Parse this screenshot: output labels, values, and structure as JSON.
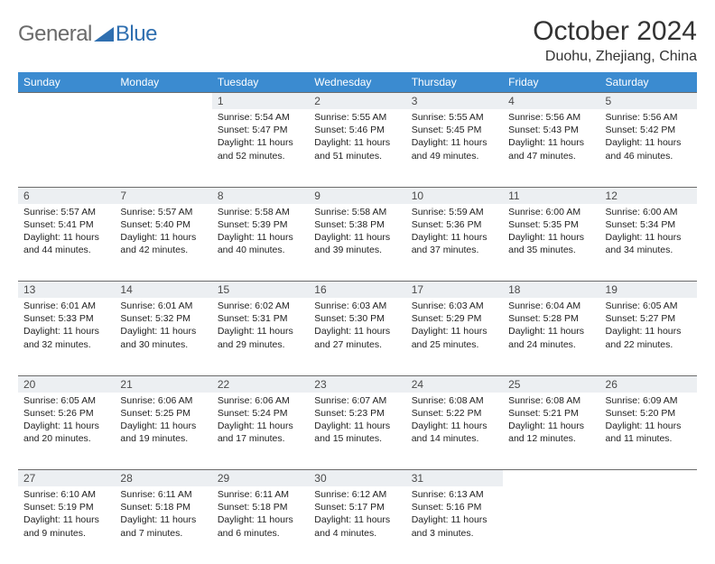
{
  "brand": {
    "text1": "General",
    "text2": "Blue"
  },
  "title": "October 2024",
  "location": "Duohu, Zhejiang, China",
  "colors": {
    "header_bg": "#3b8bd0",
    "header_text": "#ffffff",
    "daynum_bg": "#eceff2",
    "row_border": "#6b6b6b",
    "logo_gray": "#6a6a6a",
    "logo_blue": "#2f6fb0"
  },
  "dayHeaders": [
    "Sunday",
    "Monday",
    "Tuesday",
    "Wednesday",
    "Thursday",
    "Friday",
    "Saturday"
  ],
  "weeks": [
    [
      null,
      null,
      {
        "n": "1",
        "sunrise": "Sunrise: 5:54 AM",
        "sunset": "Sunset: 5:47 PM",
        "daylight": "Daylight: 11 hours and 52 minutes."
      },
      {
        "n": "2",
        "sunrise": "Sunrise: 5:55 AM",
        "sunset": "Sunset: 5:46 PM",
        "daylight": "Daylight: 11 hours and 51 minutes."
      },
      {
        "n": "3",
        "sunrise": "Sunrise: 5:55 AM",
        "sunset": "Sunset: 5:45 PM",
        "daylight": "Daylight: 11 hours and 49 minutes."
      },
      {
        "n": "4",
        "sunrise": "Sunrise: 5:56 AM",
        "sunset": "Sunset: 5:43 PM",
        "daylight": "Daylight: 11 hours and 47 minutes."
      },
      {
        "n": "5",
        "sunrise": "Sunrise: 5:56 AM",
        "sunset": "Sunset: 5:42 PM",
        "daylight": "Daylight: 11 hours and 46 minutes."
      }
    ],
    [
      {
        "n": "6",
        "sunrise": "Sunrise: 5:57 AM",
        "sunset": "Sunset: 5:41 PM",
        "daylight": "Daylight: 11 hours and 44 minutes."
      },
      {
        "n": "7",
        "sunrise": "Sunrise: 5:57 AM",
        "sunset": "Sunset: 5:40 PM",
        "daylight": "Daylight: 11 hours and 42 minutes."
      },
      {
        "n": "8",
        "sunrise": "Sunrise: 5:58 AM",
        "sunset": "Sunset: 5:39 PM",
        "daylight": "Daylight: 11 hours and 40 minutes."
      },
      {
        "n": "9",
        "sunrise": "Sunrise: 5:58 AM",
        "sunset": "Sunset: 5:38 PM",
        "daylight": "Daylight: 11 hours and 39 minutes."
      },
      {
        "n": "10",
        "sunrise": "Sunrise: 5:59 AM",
        "sunset": "Sunset: 5:36 PM",
        "daylight": "Daylight: 11 hours and 37 minutes."
      },
      {
        "n": "11",
        "sunrise": "Sunrise: 6:00 AM",
        "sunset": "Sunset: 5:35 PM",
        "daylight": "Daylight: 11 hours and 35 minutes."
      },
      {
        "n": "12",
        "sunrise": "Sunrise: 6:00 AM",
        "sunset": "Sunset: 5:34 PM",
        "daylight": "Daylight: 11 hours and 34 minutes."
      }
    ],
    [
      {
        "n": "13",
        "sunrise": "Sunrise: 6:01 AM",
        "sunset": "Sunset: 5:33 PM",
        "daylight": "Daylight: 11 hours and 32 minutes."
      },
      {
        "n": "14",
        "sunrise": "Sunrise: 6:01 AM",
        "sunset": "Sunset: 5:32 PM",
        "daylight": "Daylight: 11 hours and 30 minutes."
      },
      {
        "n": "15",
        "sunrise": "Sunrise: 6:02 AM",
        "sunset": "Sunset: 5:31 PM",
        "daylight": "Daylight: 11 hours and 29 minutes."
      },
      {
        "n": "16",
        "sunrise": "Sunrise: 6:03 AM",
        "sunset": "Sunset: 5:30 PM",
        "daylight": "Daylight: 11 hours and 27 minutes."
      },
      {
        "n": "17",
        "sunrise": "Sunrise: 6:03 AM",
        "sunset": "Sunset: 5:29 PM",
        "daylight": "Daylight: 11 hours and 25 minutes."
      },
      {
        "n": "18",
        "sunrise": "Sunrise: 6:04 AM",
        "sunset": "Sunset: 5:28 PM",
        "daylight": "Daylight: 11 hours and 24 minutes."
      },
      {
        "n": "19",
        "sunrise": "Sunrise: 6:05 AM",
        "sunset": "Sunset: 5:27 PM",
        "daylight": "Daylight: 11 hours and 22 minutes."
      }
    ],
    [
      {
        "n": "20",
        "sunrise": "Sunrise: 6:05 AM",
        "sunset": "Sunset: 5:26 PM",
        "daylight": "Daylight: 11 hours and 20 minutes."
      },
      {
        "n": "21",
        "sunrise": "Sunrise: 6:06 AM",
        "sunset": "Sunset: 5:25 PM",
        "daylight": "Daylight: 11 hours and 19 minutes."
      },
      {
        "n": "22",
        "sunrise": "Sunrise: 6:06 AM",
        "sunset": "Sunset: 5:24 PM",
        "daylight": "Daylight: 11 hours and 17 minutes."
      },
      {
        "n": "23",
        "sunrise": "Sunrise: 6:07 AM",
        "sunset": "Sunset: 5:23 PM",
        "daylight": "Daylight: 11 hours and 15 minutes."
      },
      {
        "n": "24",
        "sunrise": "Sunrise: 6:08 AM",
        "sunset": "Sunset: 5:22 PM",
        "daylight": "Daylight: 11 hours and 14 minutes."
      },
      {
        "n": "25",
        "sunrise": "Sunrise: 6:08 AM",
        "sunset": "Sunset: 5:21 PM",
        "daylight": "Daylight: 11 hours and 12 minutes."
      },
      {
        "n": "26",
        "sunrise": "Sunrise: 6:09 AM",
        "sunset": "Sunset: 5:20 PM",
        "daylight": "Daylight: 11 hours and 11 minutes."
      }
    ],
    [
      {
        "n": "27",
        "sunrise": "Sunrise: 6:10 AM",
        "sunset": "Sunset: 5:19 PM",
        "daylight": "Daylight: 11 hours and 9 minutes."
      },
      {
        "n": "28",
        "sunrise": "Sunrise: 6:11 AM",
        "sunset": "Sunset: 5:18 PM",
        "daylight": "Daylight: 11 hours and 7 minutes."
      },
      {
        "n": "29",
        "sunrise": "Sunrise: 6:11 AM",
        "sunset": "Sunset: 5:18 PM",
        "daylight": "Daylight: 11 hours and 6 minutes."
      },
      {
        "n": "30",
        "sunrise": "Sunrise: 6:12 AM",
        "sunset": "Sunset: 5:17 PM",
        "daylight": "Daylight: 11 hours and 4 minutes."
      },
      {
        "n": "31",
        "sunrise": "Sunrise: 6:13 AM",
        "sunset": "Sunset: 5:16 PM",
        "daylight": "Daylight: 11 hours and 3 minutes."
      },
      null,
      null
    ]
  ]
}
